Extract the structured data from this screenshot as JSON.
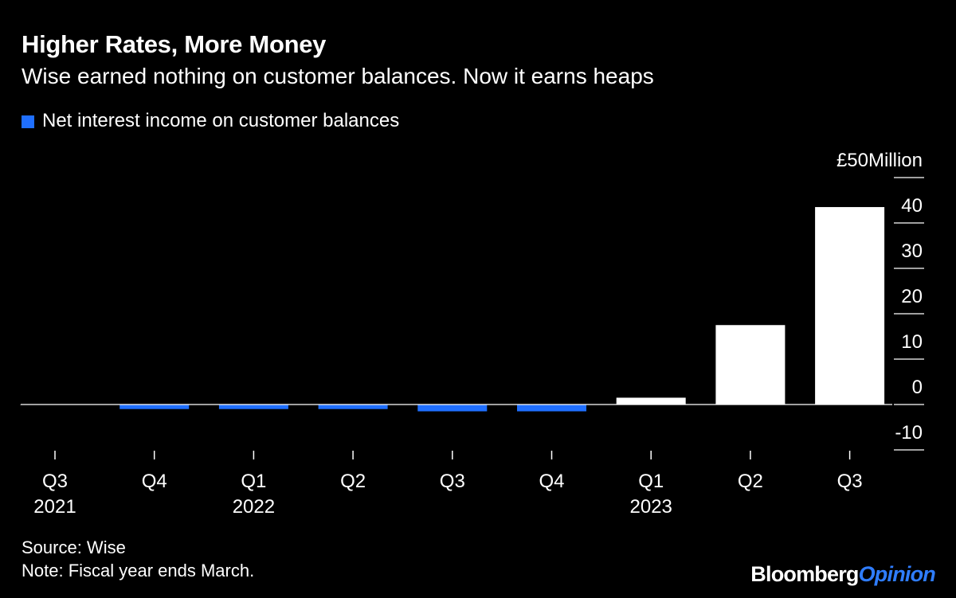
{
  "title": "Higher Rates, More Money",
  "subtitle": "Wise earned nothing on customer balances. Now it earns heaps",
  "legend": {
    "label": "Net interest income on customer balances"
  },
  "colors": {
    "negative": "#1f6fff",
    "positive": "#ffffff",
    "background": "#000000"
  },
  "footer": {
    "source": "Source: Wise",
    "note": "Note: Fiscal year ends March."
  },
  "logo": {
    "part1": "Bloomberg",
    "part2": "Opinion"
  },
  "chart_data": {
    "type": "bar",
    "title": "Higher Rates, More Money",
    "series": [
      {
        "name": "Net interest income on customer balances",
        "values": [
          0,
          -1,
          -1,
          -1,
          -1.5,
          -1.5,
          1.5,
          17.5,
          43.5
        ]
      }
    ],
    "categories": [
      "Q3",
      "Q4",
      "Q1",
      "Q2",
      "Q3",
      "Q4",
      "Q1",
      "Q2",
      "Q3"
    ],
    "category_years": [
      "2021",
      "",
      "2022",
      "",
      "",
      "",
      "2023",
      "",
      ""
    ],
    "ylabel": "£ Million",
    "ylim": [
      -10,
      50
    ],
    "yticks": [
      {
        "value": 50,
        "label": "£50Million"
      },
      {
        "value": 40,
        "label": "40"
      },
      {
        "value": 30,
        "label": "30"
      },
      {
        "value": 20,
        "label": "20"
      },
      {
        "value": 10,
        "label": "10"
      },
      {
        "value": 0,
        "label": "0"
      },
      {
        "value": -10,
        "label": "-10"
      }
    ],
    "grid": false,
    "legend_position": "top-left"
  }
}
